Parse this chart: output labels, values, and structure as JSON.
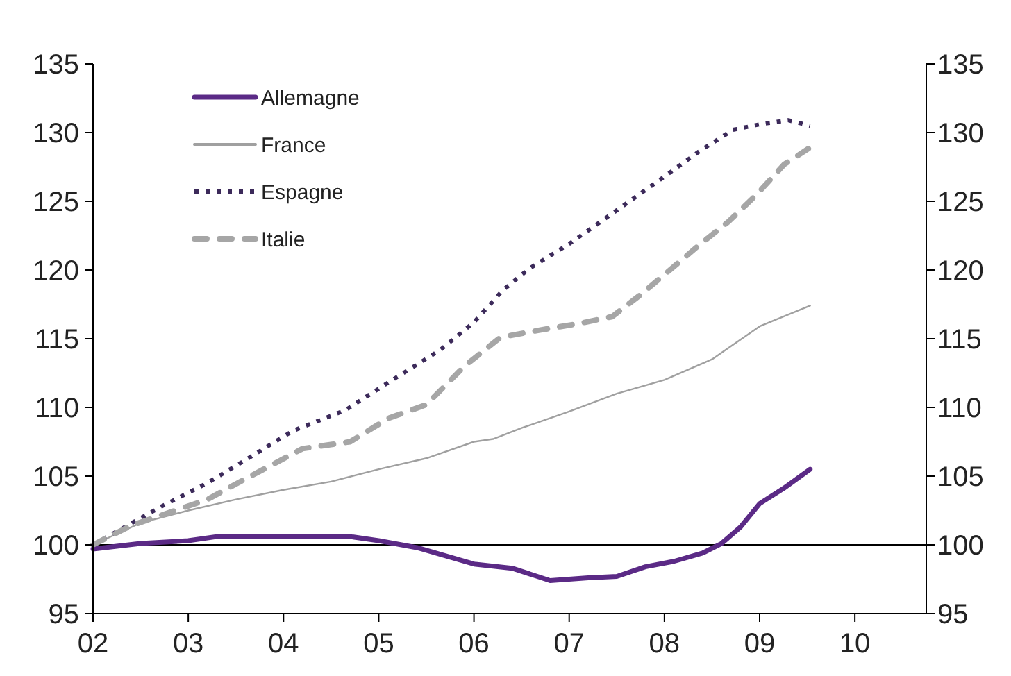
{
  "chart_data": {
    "type": "line",
    "x": [
      2002,
      2002.5,
      2003,
      2003.3,
      2004,
      2004.7,
      2005,
      2005.4,
      2006,
      2006.4,
      2006.8,
      2007.2,
      2007.5,
      2007.8,
      2008.1,
      2008.4,
      2008.6,
      2008.8,
      2009,
      2009.25,
      2009.53
    ],
    "series": [
      {
        "name": "Allemagne",
        "color": "#5b2a86",
        "line_style": "solid",
        "values": [
          99.7,
          100.1,
          100.3,
          100.6,
          100.6,
          100.6,
          100.3,
          99.8,
          98.6,
          98.3,
          97.4,
          97.6,
          97.7,
          98.4,
          98.8,
          99.4,
          100.1,
          101.3,
          103,
          104.1,
          105.5
        ]
      },
      {
        "name": "France",
        "color": "#a0a0a0",
        "line_style": "solid",
        "x": [
          2002,
          2002.5,
          2003,
          2003.5,
          2004,
          2004.5,
          2005,
          2005.5,
          2006,
          2006.2,
          2006.5,
          2007,
          2007.5,
          2008,
          2008.5,
          2009,
          2009.53
        ],
        "values": [
          100,
          101.6,
          102.5,
          103.3,
          104,
          104.6,
          105.5,
          106.3,
          107.5,
          107.7,
          108.5,
          109.7,
          111,
          112,
          113.5,
          115.9,
          117.4
        ]
      },
      {
        "name": "Espagne",
        "color": "#3c2a5a",
        "line_style": "dotted",
        "x": [
          2002,
          2002.72,
          2003.2,
          2003.63,
          2004.1,
          2004.65,
          2005.12,
          2005.65,
          2006,
          2006.3,
          2006.58,
          2007,
          2007.45,
          2007.94,
          2008.38,
          2008.72,
          2009,
          2009.3,
          2009.53
        ],
        "values": [
          100,
          102.8,
          104.5,
          106.3,
          108.3,
          109.8,
          111.9,
          114.2,
          116.2,
          118.5,
          120.1,
          121.9,
          124.1,
          126.5,
          128.7,
          130.2,
          130.6,
          130.9,
          130.5
        ]
      },
      {
        "name": "Italie",
        "color": "#a6a6a6",
        "line_style": "dashed",
        "x": [
          2002,
          2002.4,
          2003.2,
          2003.6,
          2004.2,
          2004.7,
          2005.1,
          2005.5,
          2005.9,
          2006.28,
          2006.67,
          2007.1,
          2007.45,
          2007.75,
          2008.04,
          2008.38,
          2008.67,
          2008.97,
          2009.26,
          2009.55
        ],
        "values": [
          100,
          101.4,
          103.3,
          104.8,
          107,
          107.5,
          109.2,
          110.2,
          113,
          115.1,
          115.6,
          116.1,
          116.6,
          118.2,
          119.9,
          121.9,
          123.5,
          125.5,
          127.7,
          129
        ]
      }
    ],
    "xlim": [
      2002,
      2010.75
    ],
    "xticks": [
      {
        "value": 2002,
        "label": "02"
      },
      {
        "value": 2003,
        "label": "03"
      },
      {
        "value": 2004,
        "label": "04"
      },
      {
        "value": 2005,
        "label": "05"
      },
      {
        "value": 2006,
        "label": "06"
      },
      {
        "value": 2007,
        "label": "07"
      },
      {
        "value": 2008,
        "label": "08"
      },
      {
        "value": 2009,
        "label": "09"
      },
      {
        "value": 2010,
        "label": "10"
      }
    ],
    "ylim": [
      95,
      135
    ],
    "yticks": [
      95,
      100,
      105,
      110,
      115,
      120,
      125,
      130,
      135
    ],
    "y2lim": [
      95,
      135
    ],
    "y2ticks": [
      95,
      100,
      105,
      110,
      115,
      120,
      125,
      130,
      135
    ],
    "ref_lines": [
      {
        "axis": "y",
        "value": 100,
        "color": "#000000"
      }
    ],
    "grid": false,
    "legend": "top left"
  }
}
